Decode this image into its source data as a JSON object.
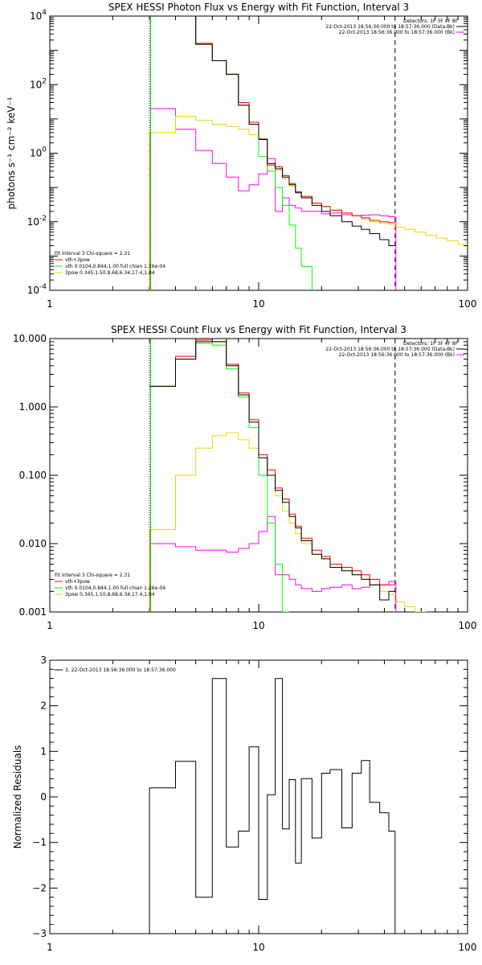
{
  "chart_data": [
    {
      "type": "line",
      "title": "SPEX HESSI Photon Flux vs Energy with Fit Function, Interval 3",
      "xlabel": "",
      "ylabel": "photons s⁻¹ cm⁻² keV⁻¹",
      "xscale": "log",
      "yscale": "log",
      "xlim": [
        1,
        100
      ],
      "ylim": [
        0.0001,
        10000
      ],
      "x_ticks": [
        {
          "value": 1,
          "label": "1"
        },
        {
          "value": 10,
          "label": "10"
        },
        {
          "value": 100,
          "label": "100"
        }
      ],
      "y_ticks": [
        {
          "value": 0.0001,
          "base": "10",
          "exp": "-4"
        },
        {
          "value": 0.01,
          "base": "10",
          "exp": "-2"
        },
        {
          "value": 1,
          "base": "10",
          "exp": "0"
        },
        {
          "value": 100,
          "base": "10",
          "exp": "2"
        },
        {
          "value": 10000,
          "base": "10",
          "exp": "4"
        }
      ],
      "vlines": [
        {
          "x": 3.0,
          "style": "dotted",
          "color": "#000000"
        },
        {
          "x": 45.0,
          "style": "dashed",
          "color": "#000000"
        }
      ],
      "bin_edges": [
        3.0,
        4.0,
        5.0,
        6.0,
        7.0,
        8.0,
        9.0,
        10.0,
        11.0,
        12.0,
        13.0,
        14.0,
        15.0,
        16.0,
        18.0,
        20.0,
        22.0,
        25.0,
        28.0,
        31.0,
        34.0,
        38.0,
        42.0,
        45.0
      ],
      "series": [
        {
          "color": "#000000",
          "values": [
            10000,
            10000,
            1500,
            500,
            200,
            25,
            7,
            2.5,
            0.5,
            0.35,
            0.2,
            0.12,
            0.07,
            0.05,
            0.03,
            0.02,
            0.015,
            0.01,
            0.0075,
            0.006,
            0.0045,
            0.003,
            0.002
          ]
        },
        {
          "color": "#ff0000",
          "values": [
            10000,
            10000,
            1600,
            500,
            200,
            30,
            8,
            2.6,
            0.45,
            0.4,
            0.22,
            0.13,
            0.075,
            0.055,
            0.035,
            0.028,
            0.022,
            0.018,
            0.015,
            0.013,
            0.011,
            0.01,
            0.0095
          ]
        },
        {
          "color": "#00ff00",
          "values": [
            10000,
            10000,
            1500,
            500,
            200,
            25,
            7,
            0.8,
            0.3,
            0.1,
            0.03,
            0.008,
            0.0017,
            0.0005,
            5e-05
          ]
        },
        {
          "color": "#dddd00",
          "values": [
            4.0,
            12.0,
            9.0,
            7.0,
            6.0,
            5.0,
            3.5,
            2.5,
            0.45,
            0.32,
            0.18,
            0.11,
            0.075,
            0.055,
            0.035,
            0.028,
            0.022,
            0.018,
            0.015,
            0.012,
            0.01,
            0.009,
            0.0085,
            0.007,
            0.006,
            0.005,
            0.004,
            0.0033,
            0.0028,
            0.0022
          ]
        },
        {
          "color": "#ff00ff",
          "values": [
            20,
            5,
            1.2,
            0.5,
            0.2,
            0.08,
            0.12,
            0.25,
            0.7,
            0.02,
            0.05,
            0.03,
            0.025,
            0.02,
            0.02,
            0.017,
            0.018,
            0.016,
            0.015,
            0.0155,
            0.016,
            0.015,
            0.014
          ]
        }
      ],
      "yellow_extra_edges": [
        3.0,
        4.0,
        5.0,
        6.0,
        7.0,
        8.0,
        9.0,
        10.0,
        11.0,
        12.0,
        13.0,
        14.0,
        15.0,
        16.0,
        18.0,
        20.0,
        22.0,
        25.0,
        28.0,
        31.0,
        34.0,
        38.0,
        42.0,
        45.0,
        50.0,
        56.0,
        63.0,
        71.0,
        80.0,
        90.0,
        100.0
      ],
      "legend": [
        {
          "label": "Fit Interval 3   Chi-square = 2.31",
          "color": ""
        },
        {
          "label": "vth+3pow",
          "color": "#ff0000"
        },
        {
          "label": "vth 0.0104,0.844,1.00  full chian 1.26e-04",
          "color": "#00ff00"
        },
        {
          "label": "3pow 0.345,1.50,8.68,6.34,17.4,1.84",
          "color": "#dddd00"
        }
      ],
      "legend_right": [
        {
          "label": "Detectors: 1F 3F 4F 8F",
          "color": ""
        },
        {
          "label": "22-Oct-2013 18:56:36.000 to 18:57:36.000 (Data-Bk)",
          "color": "#000000"
        },
        {
          "label": "22-Oct-2013 18:56:36.000 to 18:57:36.000 (Bk)",
          "color": "#ff00ff"
        }
      ]
    },
    {
      "type": "line",
      "title": "SPEX HESSI Count Flux vs Energy with Fit Function, Interval 3",
      "xlabel": "",
      "ylabel": "",
      "xscale": "log",
      "yscale": "log",
      "xlim": [
        1,
        100
      ],
      "ylim": [
        0.001,
        10.0
      ],
      "x_ticks": [
        {
          "value": 1,
          "label": "1"
        },
        {
          "value": 10,
          "label": "10"
        },
        {
          "value": 100,
          "label": "100"
        }
      ],
      "y_ticks": [
        {
          "value": 0.001,
          "label": "0.001"
        },
        {
          "value": 0.01,
          "label": "0.010"
        },
        {
          "value": 0.1,
          "label": "0.100"
        },
        {
          "value": 1.0,
          "label": "1.000"
        },
        {
          "value": 10.0,
          "label": "10.000"
        }
      ],
      "vlines": [
        {
          "x": 3.0,
          "style": "dotted",
          "color": "#000000"
        },
        {
          "x": 45.0,
          "style": "dashed",
          "color": "#000000"
        }
      ],
      "bin_edges": [
        3.0,
        4.0,
        5.0,
        6.0,
        7.0,
        8.0,
        9.0,
        10.0,
        11.0,
        12.0,
        13.0,
        14.0,
        15.0,
        16.0,
        18.0,
        20.0,
        22.0,
        25.0,
        28.0,
        31.0,
        34.0,
        38.0,
        42.0,
        45.0
      ],
      "series": [
        {
          "color": "#000000",
          "values": [
            2.0,
            5.0,
            9.0,
            9.0,
            4.0,
            1.5,
            0.6,
            0.18,
            0.1,
            0.06,
            0.04,
            0.025,
            0.017,
            0.011,
            0.007,
            0.006,
            0.0045,
            0.004,
            0.0035,
            0.003,
            0.0025,
            0.0015,
            0.002
          ]
        },
        {
          "color": "#ff0000",
          "values": [
            2.0,
            5.5,
            9.5,
            9.0,
            4.2,
            1.6,
            0.65,
            0.2,
            0.12,
            0.065,
            0.045,
            0.027,
            0.018,
            0.012,
            0.008,
            0.0065,
            0.005,
            0.0045,
            0.004,
            0.0035,
            0.003,
            0.0025,
            0.0025
          ]
        },
        {
          "color": "#00ff00",
          "values": [
            2.0,
            5.0,
            8.5,
            8.0,
            3.6,
            1.4,
            0.5,
            0.1,
            0.02,
            0.005,
            0.001,
            0.0002
          ]
        },
        {
          "color": "#dddd00",
          "values": [
            0.016,
            0.1,
            0.25,
            0.38,
            0.42,
            0.33,
            0.25,
            0.18,
            0.1,
            0.05,
            0.03,
            0.02,
            0.014,
            0.01,
            0.007,
            0.006,
            0.005,
            0.004,
            0.0035,
            0.003,
            0.0025,
            0.002,
            0.0018,
            0.0014,
            0.0012,
            0.001,
            0.0009,
            0.0008
          ]
        },
        {
          "color": "#ff00ff",
          "values": [
            0.01,
            0.009,
            0.008,
            0.008,
            0.0075,
            0.0085,
            0.01,
            0.015,
            0.025,
            0.0035,
            0.0035,
            0.003,
            0.0025,
            0.0022,
            0.002,
            0.0022,
            0.0023,
            0.0025,
            0.0022,
            0.0023,
            0.0025,
            0.0025,
            0.0028
          ]
        }
      ],
      "yellow_extra_edges": [
        3.0,
        4.0,
        5.0,
        6.0,
        7.0,
        8.0,
        9.0,
        10.0,
        11.0,
        12.0,
        13.0,
        14.0,
        15.0,
        16.0,
        18.0,
        20.0,
        22.0,
        25.0,
        28.0,
        31.0,
        34.0,
        38.0,
        42.0,
        45.0,
        50.0,
        56.0,
        63.0,
        71.0,
        80.0
      ],
      "legend": [
        {
          "label": "Fit Interval 3   Chi-square = 2.31",
          "color": ""
        },
        {
          "label": "vth+3pow",
          "color": "#ff0000"
        },
        {
          "label": "vth 0.0104,0.844,1.00  full chian 1.26e-04",
          "color": "#00ff00"
        },
        {
          "label": "3pow 0.345,1.50,8.68,6.34,17.4,1.84",
          "color": "#dddd00"
        }
      ],
      "legend_right": [
        {
          "label": "Detectors: 1F 3F 4F 8F",
          "color": ""
        },
        {
          "label": "22-Oct-2013 18:56:36.000 to 18:57:36.000 (Data-Bk)",
          "color": "#000000"
        },
        {
          "label": "22-Oct-2013 18:56:36.000 to 18:57:36.000 (Bk)",
          "color": "#ff00ff"
        }
      ]
    },
    {
      "type": "line",
      "title": "",
      "xlabel": "",
      "ylabel": "Normalized Residuals",
      "xscale": "log",
      "yscale": "linear",
      "xlim": [
        1,
        100
      ],
      "ylim": [
        -3,
        3
      ],
      "x_ticks": [
        {
          "value": 1,
          "label": "1"
        },
        {
          "value": 10,
          "label": "10"
        },
        {
          "value": 100,
          "label": "100"
        }
      ],
      "y_ticks": [
        {
          "value": -3,
          "label": "−3"
        },
        {
          "value": -2,
          "label": "−2"
        },
        {
          "value": -1,
          "label": "−1"
        },
        {
          "value": 0,
          "label": "0"
        },
        {
          "value": 1,
          "label": "1"
        },
        {
          "value": 2,
          "label": "2"
        },
        {
          "value": 3,
          "label": "3"
        }
      ],
      "bin_edges": [
        3.0,
        4.0,
        5.0,
        6.0,
        7.0,
        8.0,
        9.0,
        10.0,
        11.0,
        12.0,
        13.0,
        14.0,
        15.0,
        16.0,
        18.0,
        20.0,
        22.0,
        25.0,
        28.0,
        31.0,
        34.0,
        38.0,
        42.0,
        45.0
      ],
      "series": [
        {
          "color": "#000000",
          "values": [
            0.2,
            0.78,
            -2.2,
            2.6,
            -1.1,
            -0.75,
            1.1,
            -2.25,
            0.05,
            2.6,
            -0.7,
            0.38,
            -1.45,
            0.4,
            -0.9,
            0.52,
            0.6,
            -0.68,
            0.52,
            0.8,
            -0.12,
            -0.35,
            -0.75
          ]
        }
      ],
      "legend": [
        {
          "label": "3, 22-Oct-2013 18:56:36.000 to 18:57:36.000",
          "color": "#000000"
        }
      ]
    }
  ]
}
